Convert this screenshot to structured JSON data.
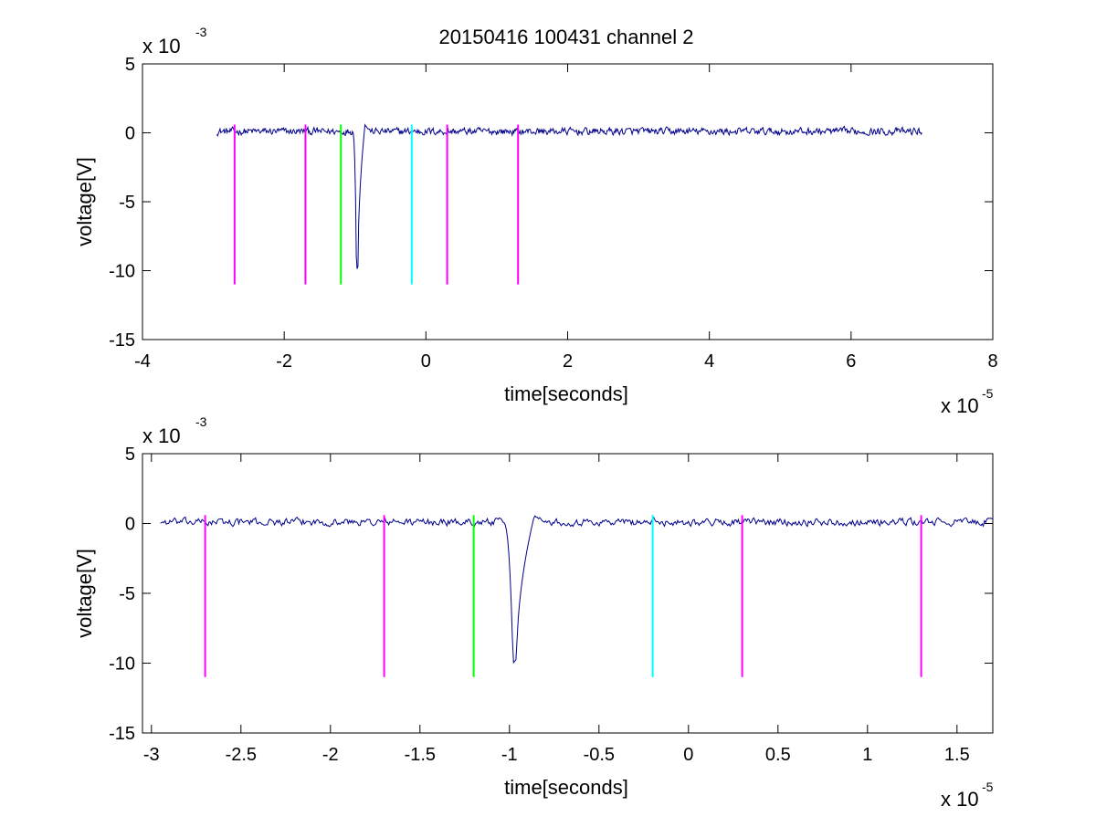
{
  "title": "20150416 100431 channel 2",
  "colors": {
    "signal": "#00008b",
    "marker_magenta": "#ff00ff",
    "marker_green": "#00ff00",
    "marker_cyan": "#00ffff"
  },
  "chart_data": [
    {
      "type": "line",
      "xlabel": "time[seconds]",
      "ylabel": "voltage[V]",
      "x_exponent_label": "x 10",
      "x_exponent": "-5",
      "y_exponent_label": "x 10",
      "y_exponent": "-3",
      "xlim": [
        -4,
        8
      ],
      "ylim": [
        -15,
        5
      ],
      "x_ticks": [
        -4,
        -2,
        0,
        2,
        4,
        6,
        8
      ],
      "x_tick_labels": [
        "-4",
        "-2",
        "0",
        "2",
        "4",
        "6",
        "8"
      ],
      "y_ticks": [
        5,
        0,
        -5,
        -10,
        -15
      ],
      "y_tick_labels": [
        "5",
        "0",
        "-5",
        "-10",
        "-15"
      ],
      "grid": false,
      "signal": {
        "x_start": -2.95,
        "x_end": 7.0,
        "baseline": 0.1,
        "noise": 0.25,
        "pulse_x": -0.98,
        "pulse_min": -10
      },
      "markers": [
        {
          "x": -2.7,
          "color": "magenta",
          "y_top": 0.6,
          "y_bottom": -11
        },
        {
          "x": -1.7,
          "color": "magenta",
          "y_top": 0.6,
          "y_bottom": -11
        },
        {
          "x": -1.2,
          "color": "green",
          "y_top": 0.6,
          "y_bottom": -11
        },
        {
          "x": -0.2,
          "color": "cyan",
          "y_top": 0.6,
          "y_bottom": -11
        },
        {
          "x": 0.3,
          "color": "magenta",
          "y_top": 0.6,
          "y_bottom": -11
        },
        {
          "x": 1.3,
          "color": "magenta",
          "y_top": 0.6,
          "y_bottom": -11
        }
      ]
    },
    {
      "type": "line",
      "xlabel": "time[seconds]",
      "ylabel": "voltage[V]",
      "x_exponent_label": "x 10",
      "x_exponent": "-5",
      "y_exponent_label": "x 10",
      "y_exponent": "-3",
      "xlim": [
        -3.05,
        1.7
      ],
      "ylim": [
        -15,
        5
      ],
      "x_ticks": [
        -3,
        -2.5,
        -2,
        -1.5,
        -1,
        -0.5,
        0,
        0.5,
        1,
        1.5
      ],
      "x_tick_labels": [
        "-3",
        "-2.5",
        "-2",
        "-1.5",
        "-1",
        "-0.5",
        "0",
        "0.5",
        "1",
        "1.5"
      ],
      "y_ticks": [
        5,
        0,
        -5,
        -10,
        -15
      ],
      "y_tick_labels": [
        "5",
        "0",
        "-5",
        "-10",
        "-15"
      ],
      "grid": false,
      "signal": {
        "x_start": -2.95,
        "x_end": 1.7,
        "baseline": 0.1,
        "noise": 0.25,
        "pulse_x": -0.98,
        "pulse_min": -10
      },
      "markers": [
        {
          "x": -2.7,
          "color": "magenta",
          "y_top": 0.6,
          "y_bottom": -11
        },
        {
          "x": -1.7,
          "color": "magenta",
          "y_top": 0.6,
          "y_bottom": -11
        },
        {
          "x": -1.2,
          "color": "green",
          "y_top": 0.6,
          "y_bottom": -11
        },
        {
          "x": -0.2,
          "color": "cyan",
          "y_top": 0.6,
          "y_bottom": -11
        },
        {
          "x": 0.3,
          "color": "magenta",
          "y_top": 0.6,
          "y_bottom": -11
        },
        {
          "x": 1.3,
          "color": "magenta",
          "y_top": 0.6,
          "y_bottom": -11
        }
      ]
    }
  ]
}
